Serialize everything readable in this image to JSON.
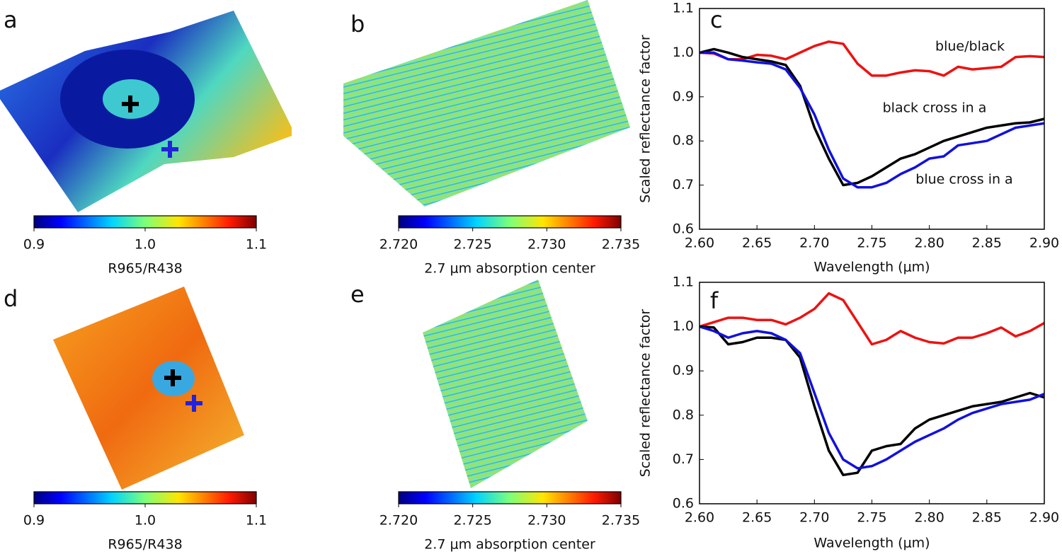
{
  "chart_data": [
    {
      "type": "image",
      "panel": "a",
      "colorbar_label": "R965/R438",
      "clim": [
        0.9,
        1.1
      ],
      "cticks": [
        0.9,
        {
          "value": 1.0,
          "label": "1.0"
        },
        1.1
      ]
    },
    {
      "type": "image",
      "panel": "b",
      "colorbar_label": "2.7 μm absorption center",
      "clim": [
        2.72,
        2.735
      ],
      "cticks": [
        {
          "value": 2.72,
          "label": "2.720"
        },
        2.725,
        {
          "value": 2.73,
          "label": "2.730"
        },
        2.735
      ]
    },
    {
      "type": "line",
      "panel": "c",
      "xlabel": "Wavelength (μm)",
      "ylabel": "Scaled reflectance factor",
      "x": [
        2.6,
        2.6125,
        2.625,
        2.6375,
        2.65,
        2.6625,
        2.675,
        2.6875,
        2.7,
        2.7125,
        2.725,
        2.7375,
        2.75,
        2.7625,
        2.775,
        2.7875,
        2.8,
        2.8125,
        2.825,
        2.8375,
        2.85,
        2.8625,
        2.875,
        2.8875,
        2.9
      ],
      "xlim": [
        2.6,
        2.9
      ],
      "ylim": [
        0.6,
        1.1
      ],
      "xticks": [
        {
          "value": 2.6,
          "label": "2.60"
        },
        2.65,
        {
          "value": 2.7,
          "label": "2.70"
        },
        2.75,
        {
          "value": 2.8,
          "label": "2.80"
        },
        2.85,
        {
          "value": 2.9,
          "label": "2.90"
        }
      ],
      "yticks": [
        0.6,
        0.7,
        0.8,
        0.9,
        {
          "value": 1.0,
          "label": "1.0"
        },
        1.1
      ],
      "series": [
        {
          "name": "blue/black",
          "color": "#ee1111",
          "values": [
            1.0,
            0.998,
            0.985,
            0.985,
            0.995,
            0.993,
            0.985,
            1.0,
            1.015,
            1.025,
            1.02,
            0.975,
            0.948,
            0.948,
            0.955,
            0.96,
            0.958,
            0.948,
            0.968,
            0.962,
            0.965,
            0.968,
            0.99,
            0.992,
            0.99
          ]
        },
        {
          "name": "black cross in a",
          "color": "#000000",
          "values": [
            1.0,
            1.008,
            1.0,
            0.99,
            0.985,
            0.98,
            0.972,
            0.925,
            0.83,
            0.76,
            0.7,
            0.705,
            0.72,
            0.74,
            0.76,
            0.77,
            0.785,
            0.8,
            0.81,
            0.82,
            0.83,
            0.835,
            0.84,
            0.842,
            0.85
          ]
        },
        {
          "name": "blue cross in a",
          "color": "#1111dd",
          "values": [
            1.0,
            1.0,
            0.985,
            0.982,
            0.978,
            0.975,
            0.962,
            0.92,
            0.86,
            0.78,
            0.715,
            0.695,
            0.695,
            0.705,
            0.725,
            0.74,
            0.76,
            0.765,
            0.79,
            0.795,
            0.8,
            0.815,
            0.83,
            0.835,
            0.84
          ]
        }
      ]
    },
    {
      "type": "image",
      "panel": "d",
      "colorbar_label": "R965/R438",
      "clim": [
        0.9,
        1.1
      ],
      "cticks": [
        0.9,
        {
          "value": 1.0,
          "label": "1.0"
        },
        1.1
      ]
    },
    {
      "type": "image",
      "panel": "e",
      "colorbar_label": "2.7 μm absorption center",
      "clim": [
        2.72,
        2.735
      ],
      "cticks": [
        {
          "value": 2.72,
          "label": "2.720"
        },
        2.725,
        {
          "value": 2.73,
          "label": "2.730"
        },
        2.735
      ]
    },
    {
      "type": "line",
      "panel": "f",
      "xlabel": "Wavelength (μm)",
      "ylabel": "Scaled reflectance factor",
      "x": [
        2.6,
        2.6125,
        2.625,
        2.6375,
        2.65,
        2.6625,
        2.675,
        2.6875,
        2.7,
        2.7125,
        2.725,
        2.7375,
        2.75,
        2.7625,
        2.775,
        2.7875,
        2.8,
        2.8125,
        2.825,
        2.8375,
        2.85,
        2.8625,
        2.875,
        2.8875,
        2.9
      ],
      "xlim": [
        2.6,
        2.9
      ],
      "ylim": [
        0.6,
        1.1
      ],
      "xticks": [
        {
          "value": 2.6,
          "label": "2.60"
        },
        2.65,
        {
          "value": 2.7,
          "label": "2.70"
        },
        2.75,
        {
          "value": 2.8,
          "label": "2.80"
        },
        2.85,
        {
          "value": 2.9,
          "label": "2.90"
        }
      ],
      "yticks": [
        0.6,
        0.7,
        0.8,
        0.9,
        {
          "value": 1.0,
          "label": "1.0"
        },
        1.1
      ],
      "series": [
        {
          "color": "#ee1111",
          "values": [
            1.0,
            1.01,
            1.02,
            1.02,
            1.015,
            1.015,
            1.005,
            1.02,
            1.04,
            1.075,
            1.06,
            1.01,
            0.96,
            0.97,
            0.99,
            0.975,
            0.965,
            0.962,
            0.975,
            0.975,
            0.985,
            0.998,
            0.978,
            0.99,
            1.008
          ]
        },
        {
          "color": "#000000",
          "values": [
            1.0,
            0.998,
            0.96,
            0.965,
            0.975,
            0.975,
            0.97,
            0.93,
            0.82,
            0.72,
            0.665,
            0.67,
            0.72,
            0.73,
            0.735,
            0.77,
            0.79,
            0.8,
            0.81,
            0.82,
            0.825,
            0.83,
            0.84,
            0.85,
            0.84
          ]
        },
        {
          "color": "#1111dd",
          "values": [
            1.0,
            0.99,
            0.975,
            0.985,
            0.99,
            0.985,
            0.97,
            0.94,
            0.85,
            0.76,
            0.7,
            0.68,
            0.685,
            0.7,
            0.72,
            0.74,
            0.755,
            0.77,
            0.79,
            0.805,
            0.815,
            0.825,
            0.83,
            0.835,
            0.848
          ]
        }
      ]
    }
  ]
}
